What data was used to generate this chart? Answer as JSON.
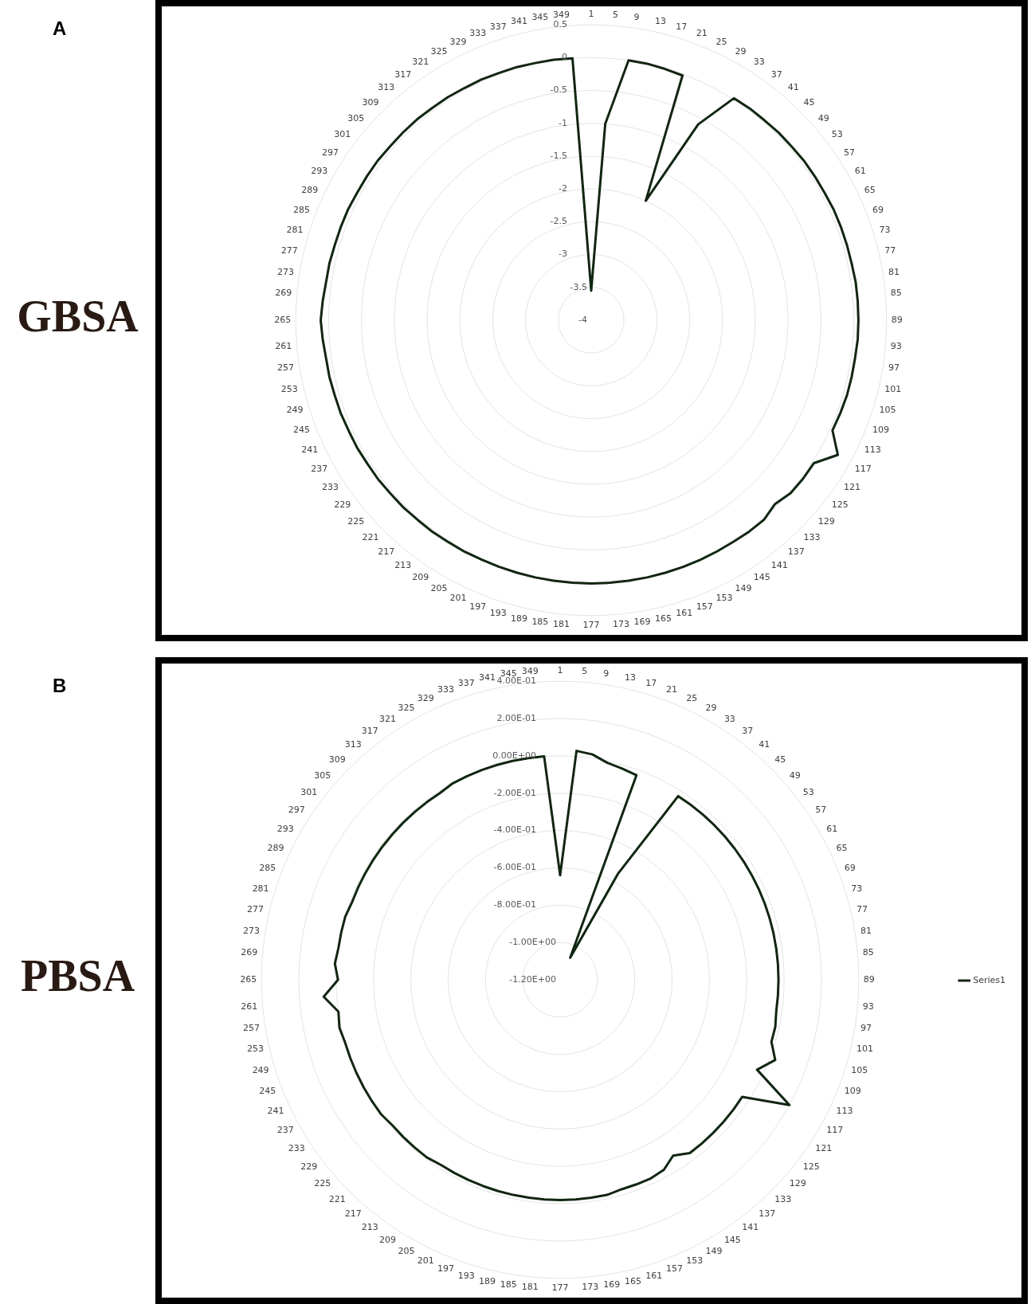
{
  "chart_data": [
    {
      "type": "radar",
      "title": "GBSA",
      "annotations": [
        "A"
      ],
      "categories": [
        "1",
        "5",
        "9",
        "13",
        "17",
        "21",
        "25",
        "29",
        "33",
        "37",
        "41",
        "45",
        "49",
        "53",
        "57",
        "61",
        "65",
        "69",
        "73",
        "77",
        "81",
        "85",
        "89",
        "93",
        "97",
        "101",
        "105",
        "109",
        "113",
        "117",
        "121",
        "125",
        "129",
        "133",
        "137",
        "141",
        "145",
        "149",
        "153",
        "157",
        "161",
        "165",
        "169",
        "173",
        "177",
        "181",
        "185",
        "189",
        "193",
        "197",
        "201",
        "205",
        "209",
        "213",
        "217",
        "221",
        "225",
        "229",
        "233",
        "237",
        "241",
        "245",
        "249",
        "253",
        "257",
        "261",
        "265",
        "269",
        "273",
        "277",
        "281",
        "285",
        "289",
        "293",
        "297",
        "301",
        "305",
        "309",
        "313",
        "317",
        "321",
        "325",
        "329",
        "333",
        "337",
        "341",
        "345",
        "349"
      ],
      "series": [
        {
          "color": "#112611",
          "values": [
            -3.55,
            -1.0,
            0.0,
            0.0,
            -0.01,
            -0.02,
            -2.0,
            -0.6,
            0.02,
            0.03,
            0.03,
            0.04,
            0.04,
            0.05,
            0.05,
            0.05,
            0.06,
            0.06,
            0.06,
            0.06,
            0.07,
            0.07,
            0.07,
            0.07,
            0.06,
            0.06,
            0.06,
            0.05,
            0.04,
            0.28,
            0.03,
            0.03,
            0.02,
            -0.04,
            0.02,
            0.02,
            0.01,
            0.01,
            0.01,
            0.01,
            0.01,
            0.01,
            0.01,
            0.01,
            0.01,
            0.01,
            0.01,
            0.01,
            0.01,
            0.01,
            0.01,
            0.02,
            0.02,
            0.03,
            0.03,
            0.04,
            0.04,
            0.05,
            0.05,
            0.06,
            0.06,
            0.07,
            0.07,
            0.08,
            0.08,
            0.1,
            0.12,
            0.1,
            0.08,
            0.08,
            0.07,
            0.07,
            0.07,
            0.06,
            0.06,
            0.06,
            0.05,
            0.05,
            0.05,
            0.04,
            0.04,
            0.03,
            0.03,
            0.02,
            0.02,
            0.01,
            0.01,
            0.0
          ]
        }
      ],
      "ylim": [
        -4,
        0.5
      ],
      "yticks": [
        -4,
        -3.5,
        -3,
        -2.5,
        -2,
        -1.5,
        -1,
        -0.5,
        0,
        0.5
      ],
      "grid": true
    },
    {
      "type": "radar",
      "title": "PBSA",
      "annotations": [
        "B"
      ],
      "categories": [
        "1",
        "5",
        "9",
        "13",
        "17",
        "21",
        "25",
        "29",
        "33",
        "37",
        "41",
        "45",
        "49",
        "53",
        "57",
        "61",
        "65",
        "69",
        "73",
        "77",
        "81",
        "85",
        "89",
        "93",
        "97",
        "101",
        "105",
        "109",
        "113",
        "117",
        "121",
        "125",
        "129",
        "133",
        "137",
        "141",
        "145",
        "149",
        "153",
        "157",
        "161",
        "165",
        "169",
        "173",
        "177",
        "181",
        "185",
        "189",
        "193",
        "197",
        "201",
        "205",
        "209",
        "213",
        "217",
        "221",
        "225",
        "229",
        "233",
        "237",
        "241",
        "245",
        "249",
        "253",
        "257",
        "261",
        "265",
        "269",
        "273",
        "277",
        "281",
        "285",
        "289",
        "293",
        "297",
        "301",
        "305",
        "309",
        "313",
        "317",
        "321",
        "325",
        "329",
        "333",
        "337",
        "341",
        "345",
        "349"
      ],
      "series": [
        {
          "name": "Series1",
          "color": "#112611",
          "values": [
            -0.64,
            0.03,
            0.02,
            -0.01,
            -0.02,
            -0.03,
            -1.07,
            -0.55,
            -0.03,
            -0.03,
            -0.03,
            -0.03,
            -0.03,
            -0.03,
            -0.03,
            -0.03,
            -0.03,
            -0.03,
            -0.03,
            -0.03,
            -0.03,
            -0.03,
            -0.03,
            -0.03,
            -0.03,
            -0.02,
            -0.02,
            0.03,
            -0.04,
            0.2,
            -0.04,
            -0.04,
            -0.04,
            -0.04,
            -0.04,
            -0.04,
            -0.08,
            -0.04,
            -0.03,
            -0.03,
            -0.03,
            -0.02,
            -0.02,
            -0.02,
            -0.02,
            -0.02,
            -0.02,
            -0.02,
            -0.02,
            -0.02,
            -0.02,
            -0.02,
            -0.02,
            -0.01,
            -0.01,
            -0.01,
            -0.01,
            0,
            0,
            0,
            0,
            0,
            0,
            0.01,
            0,
            0.07,
            -0.01,
            0.01,
            0,
            0,
            0,
            -0.01,
            -0.01,
            -0.01,
            -0.01,
            -0.01,
            -0.01,
            -0.01,
            -0.01,
            -0.01,
            -0.01,
            0,
            0,
            0,
            0,
            0,
            0,
            0
          ]
        }
      ],
      "ylim": [
        -1.2,
        0.4
      ],
      "yticks": [
        {
          "value": -1.2,
          "label": "-1.20E+00"
        },
        {
          "value": -1,
          "label": "-1.00E+00"
        },
        {
          "value": -0.8,
          "label": "-8.00E-01"
        },
        {
          "value": -0.6,
          "label": "-6.00E-01"
        },
        {
          "value": -0.4,
          "label": "-4.00E-01"
        },
        {
          "value": -0.2,
          "label": "-2.00E-01"
        },
        {
          "value": 0,
          "label": "0.00E+00"
        },
        {
          "value": 0.2,
          "label": "2.00E-01"
        },
        {
          "value": 0.4,
          "label": "4.00E-01"
        }
      ],
      "grid": true,
      "legend": "right"
    }
  ]
}
